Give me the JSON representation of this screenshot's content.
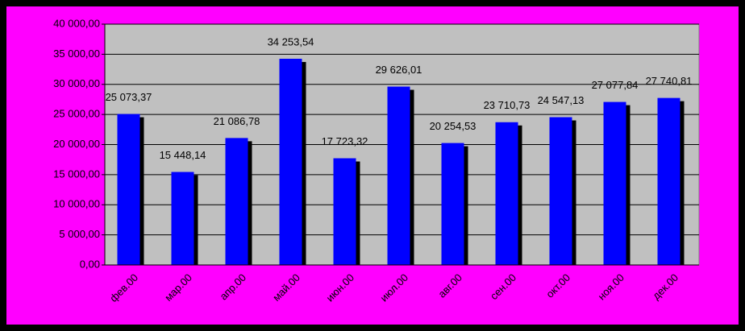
{
  "chart_data": {
    "type": "bar",
    "categories": [
      "фев.00",
      "мар.00",
      "апр.00",
      "май.00",
      "июн.00",
      "июл.00",
      "авг.00",
      "сен.00",
      "окт.00",
      "ноя.00",
      "дек.00"
    ],
    "values": [
      25073.37,
      15448.14,
      21086.78,
      34253.54,
      17723.32,
      29626.01,
      20254.53,
      23710.73,
      24547.13,
      27077.84,
      27740.81
    ],
    "value_labels": [
      "25 073,37",
      "15 448,14",
      "21 086,78",
      "34 253,54",
      "17 723,32",
      "29 626,01",
      "20 254,53",
      "23 710,73",
      "24 547,13",
      "27 077,84",
      "27 740,81"
    ],
    "color": "#0000ff",
    "ylim": [
      0,
      40000
    ],
    "yticks": [
      {
        "value": 0,
        "label": "0,00"
      },
      {
        "value": 5000,
        "label": "5 000,00"
      },
      {
        "value": 10000,
        "label": "10 000,00"
      },
      {
        "value": 15000,
        "label": "15 000,00"
      },
      {
        "value": 20000,
        "label": "20 000,00"
      },
      {
        "value": 25000,
        "label": "25 000,00"
      },
      {
        "value": 30000,
        "label": "30 000,00"
      },
      {
        "value": 35000,
        "label": "35 000,00"
      },
      {
        "value": 40000,
        "label": "40 000,00"
      }
    ],
    "grid": true
  }
}
